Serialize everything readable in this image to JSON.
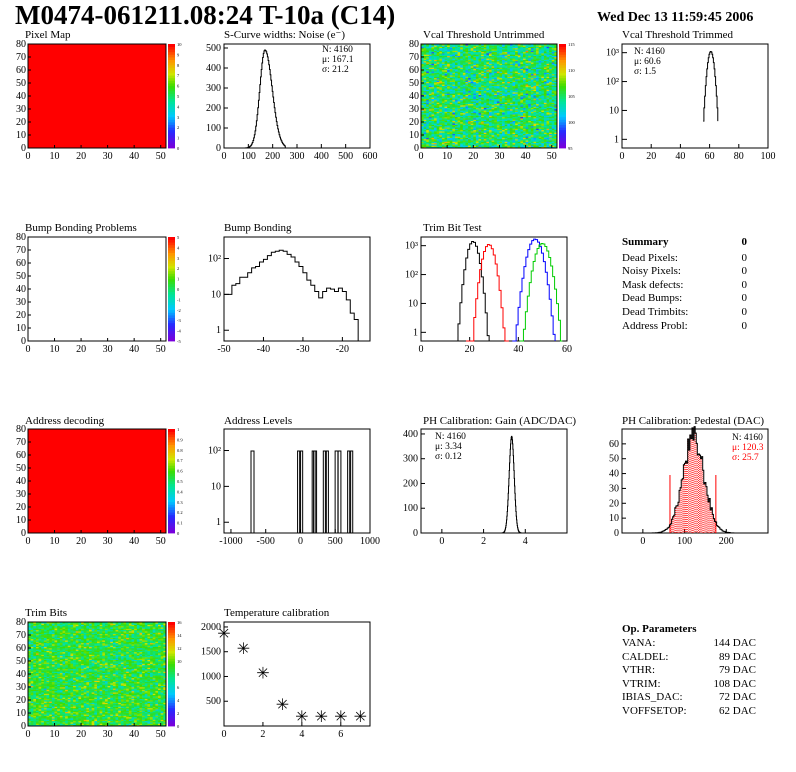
{
  "header": {
    "title": "M0474-061211.08:24 T-10a (C14)",
    "date": "Wed Dec 13 11:59:45 2006"
  },
  "colors": {
    "red": "#ff0000",
    "green": "#00cc00",
    "blue": "#0000ff",
    "black": "#000000"
  },
  "summary": {
    "title": "Summary",
    "total": "0",
    "rows": [
      {
        "label": "Dead Pixels:",
        "value": "0"
      },
      {
        "label": "Noisy Pixels:",
        "value": "0"
      },
      {
        "label": "Mask defects:",
        "value": "0"
      },
      {
        "label": "Dead Bumps:",
        "value": "0"
      },
      {
        "label": "Dead Trimbits:",
        "value": "0"
      },
      {
        "label": "Address Probl:",
        "value": "0"
      }
    ]
  },
  "op_params": {
    "title": "Op. Parameters",
    "rows": [
      {
        "label": "VANA:",
        "value": "144 DAC"
      },
      {
        "label": "CALDEL:",
        "value": "89 DAC"
      },
      {
        "label": "VTHR:",
        "value": "79 DAC"
      },
      {
        "label": "VTRIM:",
        "value": "108 DAC"
      },
      {
        "label": "IBIAS_DAC:",
        "value": "72 DAC"
      },
      {
        "label": "VOFFSETOP:",
        "value": "62 DAC"
      }
    ]
  },
  "chart_data": [
    {
      "id": "pixel_map",
      "type": "heatmap",
      "title": "Pixel Map",
      "xlim": [
        0,
        52
      ],
      "ylim": [
        0,
        80
      ],
      "xticks": [
        "0",
        "10",
        "20",
        "30",
        "40",
        "50"
      ],
      "yticks": [
        "0",
        "10",
        "20",
        "30",
        "40",
        "50",
        "60",
        "70",
        "80"
      ],
      "fill": "uniform",
      "fill_color": "red",
      "zscale": [
        "0",
        "1",
        "2",
        "3",
        "4",
        "5",
        "6",
        "7",
        "8",
        "9",
        "10"
      ]
    },
    {
      "id": "scurve",
      "type": "histogram",
      "title": "S-Curve widths: Noise (e⁻)",
      "xlim": [
        0,
        600
      ],
      "ylim": [
        0,
        520
      ],
      "xticks": [
        "0",
        "100",
        "200",
        "300",
        "400",
        "500",
        "600"
      ],
      "yticks": [
        "0",
        "100",
        "200",
        "300",
        "400",
        "500"
      ],
      "stats": {
        "N": "N: 4160",
        "mean": "μ: 167.1",
        "sigma": "σ: 21.2"
      },
      "peak": {
        "mean": 167.1,
        "sigma": 21.2,
        "max": 490
      }
    },
    {
      "id": "vcal_untrimmed",
      "type": "heatmap",
      "title": "Vcal Threshold Untrimmed",
      "xlim": [
        0,
        52
      ],
      "ylim": [
        0,
        80
      ],
      "xticks": [
        "0",
        "10",
        "20",
        "30",
        "40",
        "50"
      ],
      "yticks": [
        "0",
        "10",
        "20",
        "30",
        "40",
        "50",
        "60",
        "70",
        "80"
      ],
      "fill": "random",
      "zscale": [
        "95",
        "100",
        "105",
        "110",
        "115"
      ]
    },
    {
      "id": "vcal_trimmed",
      "type": "histogram",
      "title": "Vcal Threshold Trimmed",
      "xlim": [
        0,
        100
      ],
      "log": true,
      "xticks": [
        "0",
        "20",
        "40",
        "60",
        "80",
        "100"
      ],
      "yticks": [
        "1",
        "10",
        "10²",
        "10³"
      ],
      "stats": {
        "N": "N: 4160",
        "mean": "μ: 60.6",
        "sigma": "σ:  1.5"
      },
      "peak": {
        "mean": 60.6,
        "sigma": 1.5,
        "max": 1100
      }
    },
    {
      "id": "bump_problems",
      "type": "heatmap",
      "title": "Bump Bonding Problems",
      "xlim": [
        0,
        52
      ],
      "ylim": [
        0,
        80
      ],
      "xticks": [
        "0",
        "10",
        "20",
        "30",
        "40",
        "50"
      ],
      "yticks": [
        "0",
        "10",
        "20",
        "30",
        "40",
        "50",
        "60",
        "70",
        "80"
      ],
      "fill": "empty",
      "zscale": [
        "-5",
        "-4",
        "-3",
        "-2",
        "-1",
        "0",
        "1",
        "2",
        "3",
        "4",
        "5"
      ]
    },
    {
      "id": "bump_bonding",
      "type": "histogram",
      "title": "Bump Bonding",
      "xlim": [
        -50,
        -13
      ],
      "log": true,
      "xticks": [
        "-50",
        "-40",
        "-30",
        "-20"
      ],
      "yticks": [
        "1",
        "10",
        "10²"
      ],
      "bins": [
        [
          -50,
          10
        ],
        [
          -49,
          10
        ],
        [
          -48,
          18
        ],
        [
          -47,
          20
        ],
        [
          -46,
          30
        ],
        [
          -45,
          30
        ],
        [
          -44,
          40
        ],
        [
          -43,
          55
        ],
        [
          -42,
          60
        ],
        [
          -41,
          80
        ],
        [
          -40,
          95
        ],
        [
          -39,
          120
        ],
        [
          -38,
          150
        ],
        [
          -37,
          160
        ],
        [
          -36,
          170
        ],
        [
          -35,
          160
        ],
        [
          -34,
          130
        ],
        [
          -33,
          110
        ],
        [
          -32,
          80
        ],
        [
          -31,
          60
        ],
        [
          -30,
          40
        ],
        [
          -29,
          25
        ],
        [
          -28,
          18
        ],
        [
          -27,
          12
        ],
        [
          -26,
          8
        ],
        [
          -25,
          12
        ],
        [
          -24,
          15
        ],
        [
          -23,
          14
        ],
        [
          -22,
          12
        ],
        [
          -21,
          15
        ],
        [
          -20,
          12
        ],
        [
          -19,
          7
        ],
        [
          -18,
          3
        ],
        [
          -17,
          2
        ],
        [
          -16,
          0.5
        ]
      ]
    },
    {
      "id": "trim_bit_test",
      "type": "histogram",
      "title": "Trim Bit Test",
      "xlim": [
        0,
        60
      ],
      "log": true,
      "xticks": [
        "0",
        "20",
        "40",
        "60"
      ],
      "yticks": [
        "1",
        "10",
        "10²",
        "10³"
      ],
      "series": [
        {
          "color": "black",
          "mean": 21,
          "sigma": 1.6,
          "max": 1400
        },
        {
          "color": "red",
          "mean": 27.5,
          "sigma": 1.7,
          "max": 1100
        },
        {
          "color": "blue",
          "mean": 46.5,
          "sigma": 2.0,
          "max": 1700
        },
        {
          "color": "green",
          "mean": 49.5,
          "sigma": 2.0,
          "max": 1200
        }
      ]
    },
    {
      "id": "address_decoding",
      "type": "heatmap",
      "title": "Address decoding",
      "xlim": [
        0,
        52
      ],
      "ylim": [
        0,
        80
      ],
      "xticks": [
        "0",
        "10",
        "20",
        "30",
        "40",
        "50"
      ],
      "yticks": [
        "0",
        "10",
        "20",
        "30",
        "40",
        "50",
        "60",
        "70",
        "80"
      ],
      "fill": "uniform",
      "fill_color": "red",
      "zscale": [
        "0",
        "0.1",
        "0.2",
        "0.3",
        "0.4",
        "0.5",
        "0.6",
        "0.7",
        "0.8",
        "0.9",
        "1"
      ]
    },
    {
      "id": "address_levels",
      "type": "histogram",
      "title": "Address Levels",
      "xlim": [
        -1100,
        1000
      ],
      "log": true,
      "xticks": [
        "-1000",
        "-500",
        "0",
        "500",
        "1000"
      ],
      "yticks": [
        "1",
        "10",
        "10²"
      ],
      "spikes": [
        -690,
        -20,
        10,
        190,
        210,
        350,
        380,
        520,
        560,
        700,
        730
      ]
    },
    {
      "id": "ph_gain",
      "type": "histogram",
      "title": "PH Calibration: Gain (ADC/DAC)",
      "xlim": [
        -1,
        6
      ],
      "ylim": [
        0,
        420
      ],
      "xticks": [
        "0",
        "2",
        "4"
      ],
      "yticks": [
        "0",
        "100",
        "200",
        "300",
        "400"
      ],
      "stats": {
        "N": "N: 4160",
        "mean": "μ: 3.34",
        "sigma": "σ: 0.12"
      },
      "peak": {
        "mean": 3.34,
        "sigma": 0.12,
        "max": 390
      }
    },
    {
      "id": "ph_pedestal",
      "type": "histogram",
      "title": "PH Calibration: Pedestal (DAC)",
      "xlim": [
        -50,
        300
      ],
      "ylim": [
        0,
        70
      ],
      "xticks": [
        "0",
        "100",
        "200"
      ],
      "yticks": [
        "0",
        "10",
        "20",
        "30",
        "40",
        "50",
        "60"
      ],
      "stats": {
        "N": "N: 4160",
        "mean": "μ: 120.3",
        "sigma": "σ: 25.7"
      },
      "peak": {
        "mean": 120.3,
        "sigma": 25.7,
        "max": 63
      },
      "fill_range": [
        65,
        175
      ]
    },
    {
      "id": "trim_bits",
      "type": "heatmap",
      "title": "Trim Bits",
      "xlim": [
        0,
        52
      ],
      "ylim": [
        0,
        80
      ],
      "xticks": [
        "0",
        "10",
        "20",
        "30",
        "40",
        "50"
      ],
      "yticks": [
        "0",
        "10",
        "20",
        "30",
        "40",
        "50",
        "60",
        "70",
        "80"
      ],
      "fill": "trimbits",
      "zscale": [
        "0",
        "2",
        "4",
        "6",
        "8",
        "10",
        "12",
        "14",
        "16"
      ]
    },
    {
      "id": "temperature",
      "type": "scatter",
      "title": "Temperature calibration",
      "xlim": [
        0,
        7.5
      ],
      "ylim": [
        0,
        2100
      ],
      "xticks": [
        "0",
        "2",
        "4",
        "6"
      ],
      "yticks": [
        "500",
        "1000",
        "1500",
        "2000"
      ],
      "x": [
        0,
        1,
        2,
        3,
        4,
        5,
        6,
        7
      ],
      "y": [
        1880,
        1580,
        1080,
        440,
        200,
        200,
        200,
        200
      ]
    }
  ]
}
